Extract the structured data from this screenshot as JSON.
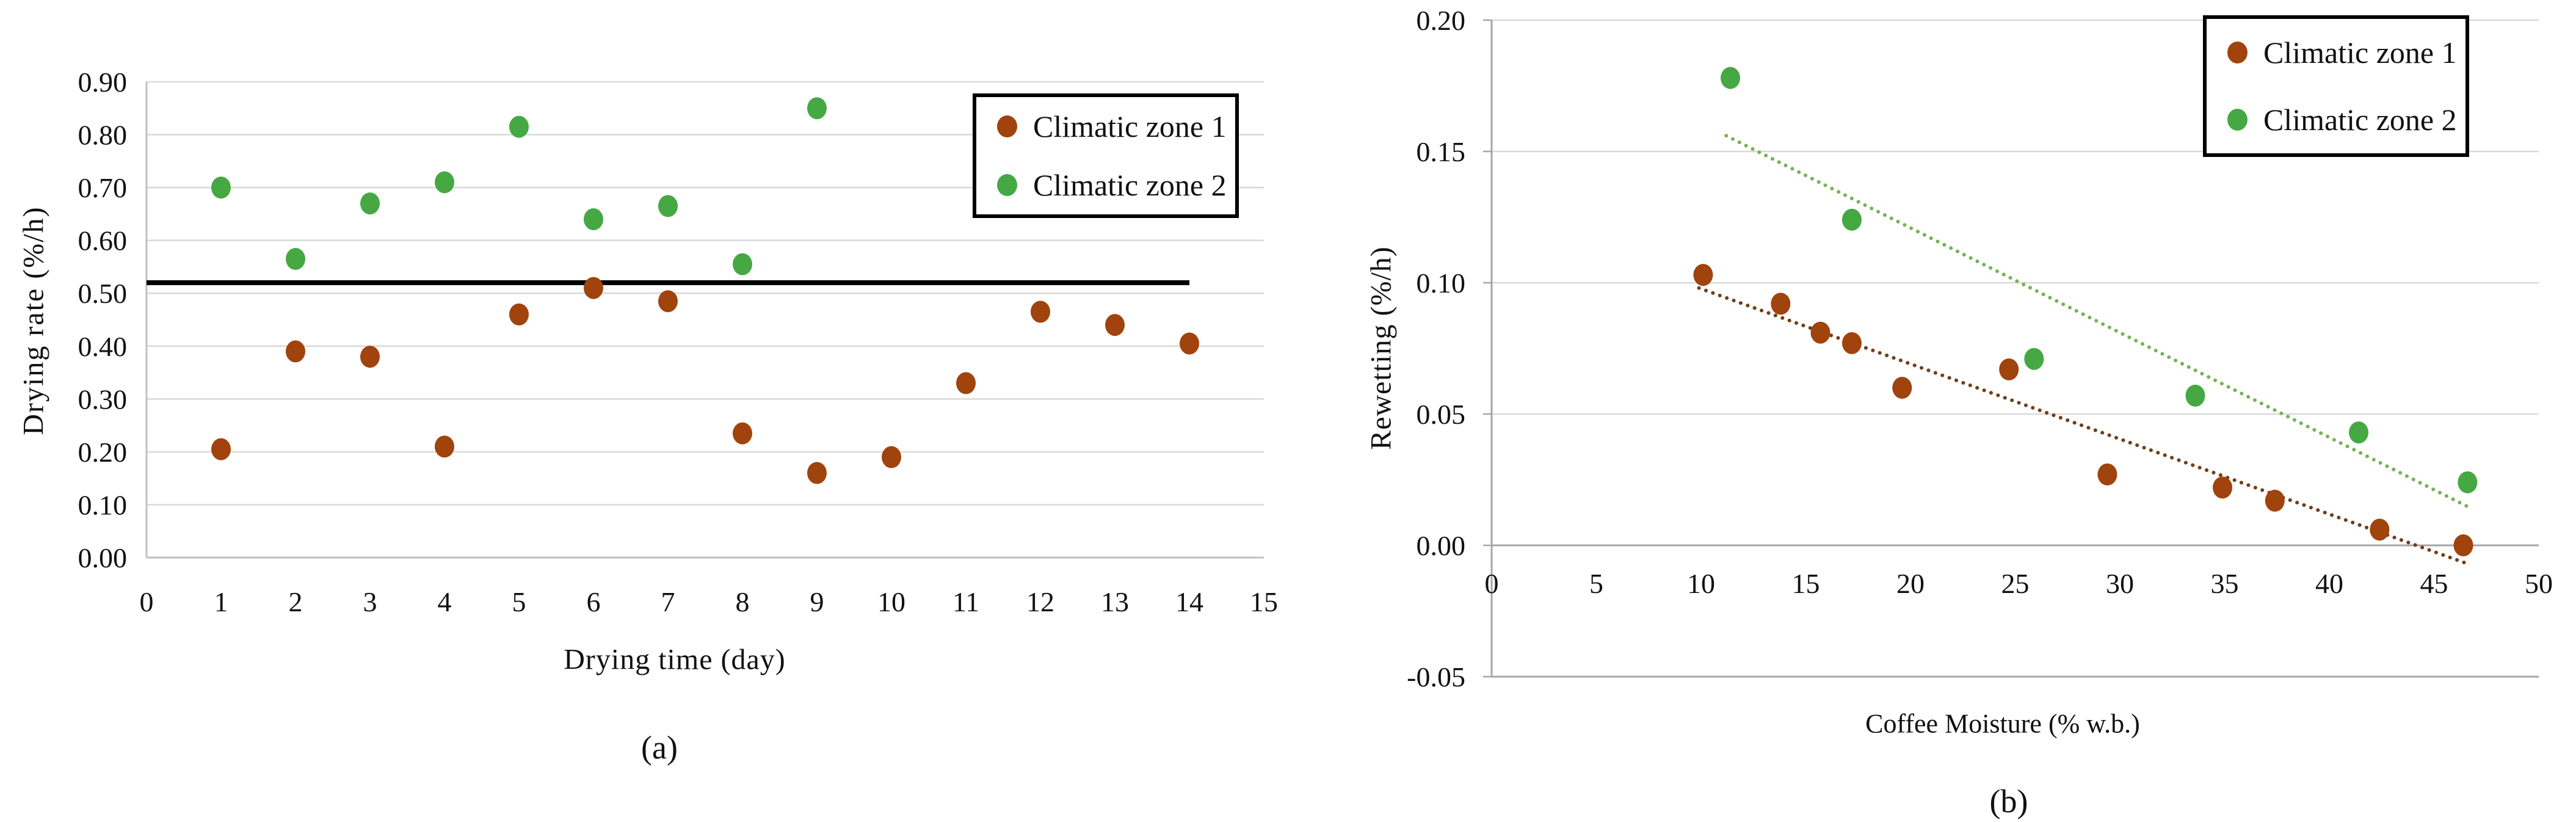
{
  "figure": {
    "caption_a": "(a)",
    "caption_b": "(b)"
  },
  "chart_data": [
    {
      "id": "a",
      "type": "scatter",
      "caption": "(a)",
      "xlabel": "Drying time (day)",
      "ylabel": "Drying rate (%/h)",
      "xlim": [
        0,
        15
      ],
      "ylim": [
        0.0,
        0.9
      ],
      "grid": "horizontal",
      "legend_position": "top-right-inside",
      "grid_color": "#D9D9D9",
      "axis_color": "#BFBFBF",
      "xticks": [
        {
          "v": 0,
          "label": "0"
        },
        {
          "v": 1,
          "label": "1"
        },
        {
          "v": 2,
          "label": "2"
        },
        {
          "v": 3,
          "label": "3"
        },
        {
          "v": 4,
          "label": "4"
        },
        {
          "v": 5,
          "label": "5"
        },
        {
          "v": 6,
          "label": "6"
        },
        {
          "v": 7,
          "label": "7"
        },
        {
          "v": 8,
          "label": "8"
        },
        {
          "v": 9,
          "label": "9"
        },
        {
          "v": 10,
          "label": "10"
        },
        {
          "v": 11,
          "label": "11"
        },
        {
          "v": 12,
          "label": "12"
        },
        {
          "v": 13,
          "label": "13"
        },
        {
          "v": 14,
          "label": "14"
        },
        {
          "v": 15,
          "label": "15"
        }
      ],
      "yticks": [
        {
          "v": 0.0,
          "label": "0.00"
        },
        {
          "v": 0.1,
          "label": "0.10"
        },
        {
          "v": 0.2,
          "label": "0.20"
        },
        {
          "v": 0.3,
          "label": "0.30"
        },
        {
          "v": 0.4,
          "label": "0.40"
        },
        {
          "v": 0.5,
          "label": "0.50"
        },
        {
          "v": 0.6,
          "label": "0.60"
        },
        {
          "v": 0.7,
          "label": "0.70"
        },
        {
          "v": 0.8,
          "label": "0.80"
        },
        {
          "v": 0.9,
          "label": "0.90"
        }
      ],
      "series": [
        {
          "name": "Climatic zone 1",
          "color": "#A0430D",
          "points": [
            [
              1,
              0.205
            ],
            [
              2,
              0.39
            ],
            [
              3,
              0.38
            ],
            [
              4,
              0.21
            ],
            [
              5,
              0.46
            ],
            [
              6,
              0.51
            ],
            [
              7,
              0.485
            ],
            [
              8,
              0.235
            ],
            [
              9,
              0.16
            ],
            [
              10,
              0.19
            ],
            [
              11,
              0.33
            ],
            [
              12,
              0.465
            ],
            [
              13,
              0.44
            ],
            [
              14,
              0.405
            ]
          ]
        },
        {
          "name": "Climatic zone 2",
          "color": "#45A843",
          "points": [
            [
              1,
              0.7
            ],
            [
              2,
              0.565
            ],
            [
              3,
              0.67
            ],
            [
              4,
              0.71
            ],
            [
              5,
              0.815
            ],
            [
              6,
              0.64
            ],
            [
              7,
              0.665
            ],
            [
              8,
              0.555
            ],
            [
              9,
              0.85
            ]
          ]
        }
      ],
      "refline": {
        "y": 0.52,
        "x0": 0,
        "x1": 14,
        "color": "#000000"
      }
    },
    {
      "id": "b",
      "type": "scatter",
      "caption": "(b)",
      "xlabel": "Coffee Moisture (% w.b.)",
      "ylabel": "Rewetting (%/h)",
      "xlim": [
        0,
        50
      ],
      "ylim": [
        -0.05,
        0.2
      ],
      "grid": "horizontal",
      "legend_position": "top-right-inside",
      "grid_color": "#D9D9D9",
      "axis_color": "#A6A6A6",
      "xticks": [
        {
          "v": 0,
          "label": "0"
        },
        {
          "v": 5,
          "label": "5"
        },
        {
          "v": 10,
          "label": "10"
        },
        {
          "v": 15,
          "label": "15"
        },
        {
          "v": 20,
          "label": "20"
        },
        {
          "v": 25,
          "label": "25"
        },
        {
          "v": 30,
          "label": "30"
        },
        {
          "v": 35,
          "label": "35"
        },
        {
          "v": 40,
          "label": "40"
        },
        {
          "v": 45,
          "label": "45"
        },
        {
          "v": 50,
          "label": "50"
        }
      ],
      "yticks": [
        {
          "v": -0.05,
          "label": "-0.05"
        },
        {
          "v": 0.0,
          "label": "0.00"
        },
        {
          "v": 0.05,
          "label": "0.05"
        },
        {
          "v": 0.1,
          "label": "0.10"
        },
        {
          "v": 0.15,
          "label": "0.15"
        },
        {
          "v": 0.2,
          "label": "0.20"
        }
      ],
      "series": [
        {
          "name": "Climatic zone 1",
          "color": "#A0430D",
          "points": [
            [
              10.1,
              0.103
            ],
            [
              13.8,
              0.092
            ],
            [
              15.7,
              0.081
            ],
            [
              17.2,
              0.077
            ],
            [
              19.6,
              0.06
            ],
            [
              24.7,
              0.067
            ],
            [
              29.4,
              0.027
            ],
            [
              34.9,
              0.022
            ],
            [
              37.4,
              0.017
            ],
            [
              42.4,
              0.006
            ],
            [
              46.4,
              0.0
            ]
          ]
        },
        {
          "name": "Climatic zone 2",
          "color": "#45A843",
          "points": [
            [
              11.4,
              0.178
            ],
            [
              17.2,
              0.124
            ],
            [
              25.9,
              0.071
            ],
            [
              33.6,
              0.057
            ],
            [
              41.4,
              0.043
            ],
            [
              46.6,
              0.024
            ]
          ]
        }
      ],
      "trendlines": [
        {
          "series": "Climatic zone 1",
          "style": "dotted",
          "color": "#713E1A",
          "from": [
            9.9,
            0.098
          ],
          "to": [
            46.6,
            -0.007
          ]
        },
        {
          "series": "Climatic zone 2",
          "style": "dotted",
          "color": "#76B356",
          "from": [
            11.2,
            0.156
          ],
          "to": [
            46.8,
            0.014
          ]
        }
      ]
    }
  ]
}
